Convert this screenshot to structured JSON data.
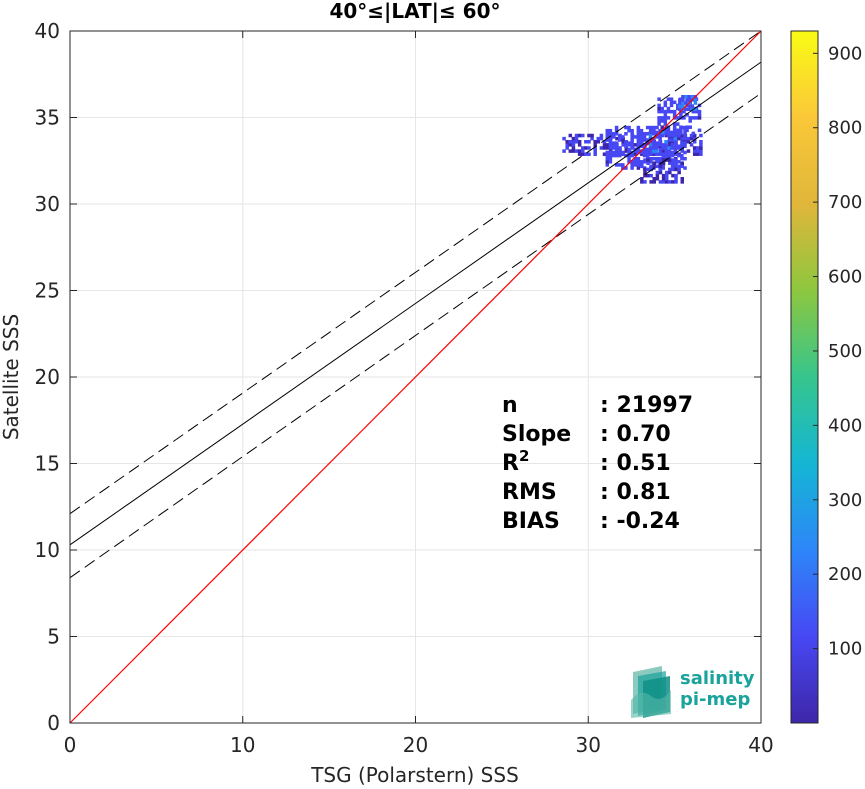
{
  "chart_data": {
    "type": "heatmap",
    "title": "40°≤|LAT|≤ 60°",
    "xlabel": "TSG (Polarstern) SSS",
    "ylabel": "Satellite SSS",
    "xlim": [
      0,
      40
    ],
    "ylim": [
      0,
      40
    ],
    "xticks": [
      "0",
      "10",
      "20",
      "30",
      "40"
    ],
    "yticks": [
      "0",
      "5",
      "10",
      "15",
      "20",
      "25",
      "30",
      "35",
      "40"
    ],
    "grid": true,
    "one_to_one_line": {
      "x": [
        0,
        40
      ],
      "y": [
        0,
        40
      ],
      "color": "#ff0000"
    },
    "fit_line": {
      "x": [
        0,
        40
      ],
      "y": [
        10.3,
        38.2
      ],
      "color": "#000000"
    },
    "fit_upper_bound": {
      "x": [
        0,
        40
      ],
      "y": [
        12.1,
        40.0
      ]
    },
    "fit_lower_bound": {
      "x": [
        0,
        40
      ],
      "y": [
        8.4,
        36.4
      ]
    },
    "density_clusters": [
      {
        "x": [
          28.5,
          36.5
        ],
        "y": [
          32.8,
          34.0
        ],
        "level": 0.06
      },
      {
        "x": [
          31.0,
          35.5
        ],
        "y": [
          32.0,
          34.5
        ],
        "level": 0.1
      },
      {
        "x": [
          33.0,
          35.5
        ],
        "y": [
          31.2,
          32.6
        ],
        "level": 0.06
      },
      {
        "x": [
          34.0,
          36.5
        ],
        "y": [
          34.0,
          36.0
        ],
        "level": 0.1
      },
      {
        "x": [
          35.2,
          36.2
        ],
        "y": [
          35.4,
          36.2
        ],
        "level": 0.16
      },
      {
        "x": [
          33.5,
          35.0
        ],
        "y": [
          32.8,
          34.2
        ],
        "level": 0.14
      }
    ],
    "colorbar": {
      "min": 0,
      "max": 930,
      "ticks": [
        "100",
        "200",
        "300",
        "400",
        "500",
        "600",
        "700",
        "800",
        "900"
      ],
      "colormap": [
        "#3e26a8",
        "#4748f4",
        "#2d86f8",
        "#14b6d4",
        "#36c58c",
        "#8dc73f",
        "#e0b63a",
        "#fac838",
        "#f9fb15"
      ]
    },
    "stats": [
      {
        "label": "n",
        "value": ": 21997"
      },
      {
        "label": "Slope",
        "value": ": 0.70"
      },
      {
        "label": "R",
        "superscript": "2",
        "value": ": 0.51"
      },
      {
        "label": "RMS",
        "value": ": 0.81"
      },
      {
        "label": "BIAS",
        "value": ": -0.24"
      }
    ]
  },
  "logo": {
    "line1": "salinity",
    "line2": "pi-mep"
  }
}
